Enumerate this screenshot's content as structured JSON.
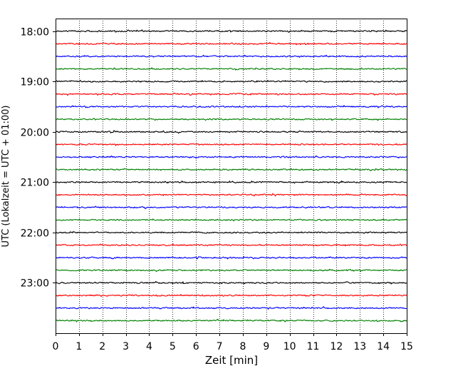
{
  "chart_data": {
    "type": "line",
    "title": "",
    "xlabel": "Zeit  [min]",
    "ylabel": "UTC (Lokalzeit = UTC + 01:00)",
    "xlim": [
      0,
      15
    ],
    "x_ticks": [
      "0",
      "1",
      "2",
      "3",
      "4",
      "5",
      "6",
      "7",
      "8",
      "9",
      "10",
      "11",
      "12",
      "13",
      "14",
      "15"
    ],
    "y_ticks": [
      {
        "label": "18:00",
        "time_utc": "18:00"
      },
      {
        "label": "19:00",
        "time_utc": "19:00"
      },
      {
        "label": "20:00",
        "time_utc": "20:00"
      },
      {
        "label": "21:00",
        "time_utc": "21:00"
      },
      {
        "label": "22:00",
        "time_utc": "22:00"
      },
      {
        "label": "23:00",
        "time_utc": "23:00"
      }
    ],
    "ylim_top": "17:45",
    "ylim_bottom": "24:00",
    "grid": "vertical dotted at each minute",
    "series_colors": [
      "#000000",
      "#ff0000",
      "#0000ff",
      "#008000"
    ],
    "traces": [
      {
        "start_utc": "18:00",
        "color": "#000000"
      },
      {
        "start_utc": "18:15",
        "color": "#ff0000"
      },
      {
        "start_utc": "18:30",
        "color": "#0000ff"
      },
      {
        "start_utc": "18:45",
        "color": "#008000"
      },
      {
        "start_utc": "19:00",
        "color": "#000000"
      },
      {
        "start_utc": "19:15",
        "color": "#ff0000"
      },
      {
        "start_utc": "19:30",
        "color": "#0000ff"
      },
      {
        "start_utc": "19:45",
        "color": "#008000"
      },
      {
        "start_utc": "20:00",
        "color": "#000000"
      },
      {
        "start_utc": "20:15",
        "color": "#ff0000"
      },
      {
        "start_utc": "20:30",
        "color": "#0000ff"
      },
      {
        "start_utc": "20:45",
        "color": "#008000"
      },
      {
        "start_utc": "21:00",
        "color": "#000000"
      },
      {
        "start_utc": "21:15",
        "color": "#ff0000"
      },
      {
        "start_utc": "21:30",
        "color": "#0000ff"
      },
      {
        "start_utc": "21:45",
        "color": "#008000"
      },
      {
        "start_utc": "22:00",
        "color": "#000000"
      },
      {
        "start_utc": "22:15",
        "color": "#ff0000"
      },
      {
        "start_utc": "22:30",
        "color": "#0000ff"
      },
      {
        "start_utc": "22:45",
        "color": "#008000"
      },
      {
        "start_utc": "23:00",
        "color": "#000000"
      },
      {
        "start_utc": "23:15",
        "color": "#ff0000"
      },
      {
        "start_utc": "23:30",
        "color": "#0000ff"
      },
      {
        "start_utc": "23:45",
        "color": "#008000"
      }
    ]
  }
}
